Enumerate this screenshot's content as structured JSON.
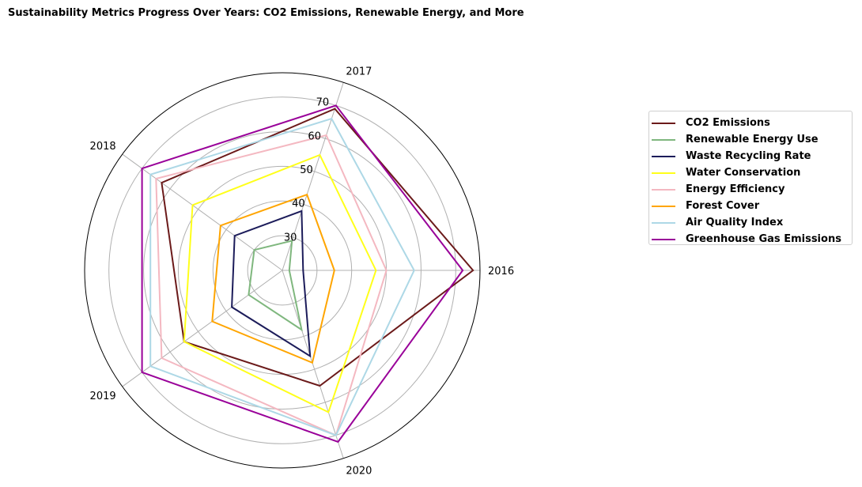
{
  "chart_data": {
    "type": "radar",
    "title": "Sustainability Metrics Progress Over Years: CO2 Emissions, Renewable Energy, and More",
    "categories": [
      "2016",
      "2017",
      "2018",
      "2019",
      "2020"
    ],
    "rlim": [
      20,
      77
    ],
    "r_ticks": [
      30,
      40,
      50,
      60,
      70
    ],
    "grid": true,
    "legend_position": "right",
    "series": [
      {
        "name": "CO2 Emissions",
        "color": "#6b1a1a",
        "values": [
          75,
          69,
          63,
          55,
          55
        ]
      },
      {
        "name": "Renewable Energy Use",
        "color": "#7fb77e",
        "values": [
          22,
          29,
          30,
          32,
          38
        ]
      },
      {
        "name": "Waste Recycling Rate",
        "color": "#1c1c5a",
        "values": [
          26,
          38,
          37,
          38,
          46
        ]
      },
      {
        "name": "Water Conservation",
        "color": "#ffff1a",
        "values": [
          47,
          55,
          52,
          55,
          63
        ]
      },
      {
        "name": "Energy Efficiency",
        "color": "#f4b8c1",
        "values": [
          50,
          61,
          65,
          63,
          70
        ]
      },
      {
        "name": "Forest Cover",
        "color": "#ffa500",
        "values": [
          35,
          43,
          42,
          45,
          48
        ]
      },
      {
        "name": "Air Quality Index",
        "color": "#add8e6",
        "values": [
          58,
          66,
          67,
          67,
          70
        ]
      },
      {
        "name": "Greenhouse Gas Emissions",
        "color": "#990099",
        "values": [
          72,
          70,
          70,
          70,
          72
        ]
      }
    ]
  }
}
